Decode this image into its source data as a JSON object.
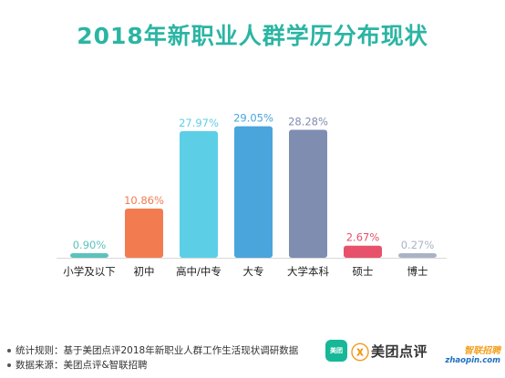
{
  "title": "2018年新职业人群学历分布现状",
  "chart_data": {
    "type": "bar",
    "title": "2018年新职业人群学历分布现状",
    "categories": [
      "小学及以下",
      "初中",
      "高中/中专",
      "大专",
      "大学本科",
      "硕士",
      "博士"
    ],
    "values": [
      0.9,
      10.86,
      27.97,
      29.05,
      28.28,
      2.67,
      0.27
    ],
    "value_labels": [
      "0.90%",
      "10.86%",
      "27.97%",
      "29.05%",
      "28.28%",
      "2.67%",
      "0.27%"
    ],
    "colors": [
      "#5bc2bd",
      "#f27c50",
      "#5ccfe6",
      "#4aa5dd",
      "#7f8db1",
      "#e8516b",
      "#aab2c5"
    ],
    "ylim": [
      0,
      32
    ],
    "grid": false,
    "legend": "none"
  },
  "footnotes": [
    "统计规则：基于美团点评2018年新职业人群工作生活现状调研数据",
    "数据来源：美团点评&智联招聘"
  ],
  "brands": {
    "meituan_icon_text": "美团",
    "meituan_name": "美团点评",
    "zhaopin_cn": "智联招聘",
    "zhaopin_en": "zhaopin.com"
  }
}
